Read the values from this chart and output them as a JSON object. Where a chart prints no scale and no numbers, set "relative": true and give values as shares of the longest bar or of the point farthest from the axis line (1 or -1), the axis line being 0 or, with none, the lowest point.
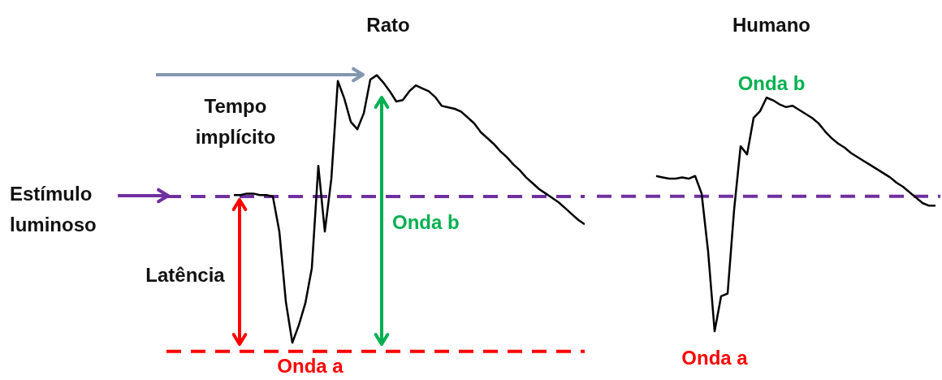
{
  "chart_data": [
    {
      "type": "line",
      "title": "Rato",
      "relative": true,
      "color": "#000000",
      "marker": "none",
      "categories": [
        null,
        null,
        null,
        null,
        null,
        null,
        null,
        null,
        null,
        null,
        null,
        null,
        null,
        null,
        null,
        null,
        null,
        null,
        null,
        null,
        null,
        null,
        null,
        null,
        null,
        null,
        null,
        null,
        null,
        null,
        null,
        null,
        null,
        null,
        null,
        null,
        null,
        null,
        null,
        null,
        null,
        null,
        null,
        null,
        null,
        null,
        null,
        null,
        null,
        null,
        null,
        null,
        null,
        null,
        null
      ],
      "values": [
        0.01,
        0.01,
        0.02,
        0.02,
        0.01,
        0.01,
        0,
        -0.24,
        -0.72,
        -1,
        -0.88,
        -0.73,
        -0.49,
        0.21,
        -0.24,
        0.12,
        0.79,
        0.67,
        0.51,
        0.46,
        0.57,
        0.8,
        0.83,
        0.78,
        0.72,
        0.65,
        0.66,
        0.72,
        0.76,
        0.74,
        0.72,
        0.68,
        0.62,
        0.61,
        0.6,
        0.58,
        0.54,
        0.5,
        0.44,
        0.4,
        0.36,
        0.31,
        0.27,
        0.22,
        0.18,
        0.13,
        0.09,
        0.05,
        0.02,
        -0.01,
        -0.04,
        -0.08,
        -0.12,
        -0.16,
        -0.19
      ],
      "ref_lines": [
        {
          "axis": "y",
          "value": 0,
          "color": "#7030a0",
          "line_style": "dashed"
        },
        {
          "axis": "y",
          "value": -1.06,
          "color": "#ff0000",
          "line_style": "dashed"
        }
      ],
      "annotations": [
        "Tempo implícito",
        "Estímulo luminoso",
        "Latência",
        "Onda b",
        "Onda a"
      ]
    },
    {
      "type": "line",
      "title": "Humano",
      "relative": true,
      "color": "#000000",
      "marker": "none",
      "categories": [
        null,
        null,
        null,
        null,
        null,
        null,
        null,
        null,
        null,
        null,
        null,
        null,
        null,
        null,
        null,
        null,
        null,
        null,
        null,
        null,
        null,
        null,
        null,
        null,
        null,
        null,
        null,
        null,
        null,
        null,
        null,
        null,
        null,
        null,
        null,
        null,
        null,
        null,
        null,
        null,
        null,
        null,
        null,
        null
      ],
      "values": [
        0.15,
        0.14,
        0.13,
        0.13,
        0.14,
        0.13,
        0.15,
        0.02,
        -0.41,
        -1,
        -0.74,
        -0.72,
        -0.1,
        0.37,
        0.31,
        0.58,
        0.63,
        0.73,
        0.71,
        0.68,
        0.66,
        0.67,
        0.64,
        0.61,
        0.58,
        0.54,
        0.48,
        0.43,
        0.39,
        0.36,
        0.32,
        0.29,
        0.26,
        0.23,
        0.2,
        0.17,
        0.14,
        0.1,
        0.07,
        0.03,
        -0.01,
        -0.05,
        -0.07,
        -0.07
      ],
      "ref_lines": [
        {
          "axis": "y",
          "value": 0,
          "color": "#7030a0",
          "line_style": "dashed"
        }
      ],
      "annotations": [
        "Onda b",
        "Onda a"
      ]
    }
  ]
}
